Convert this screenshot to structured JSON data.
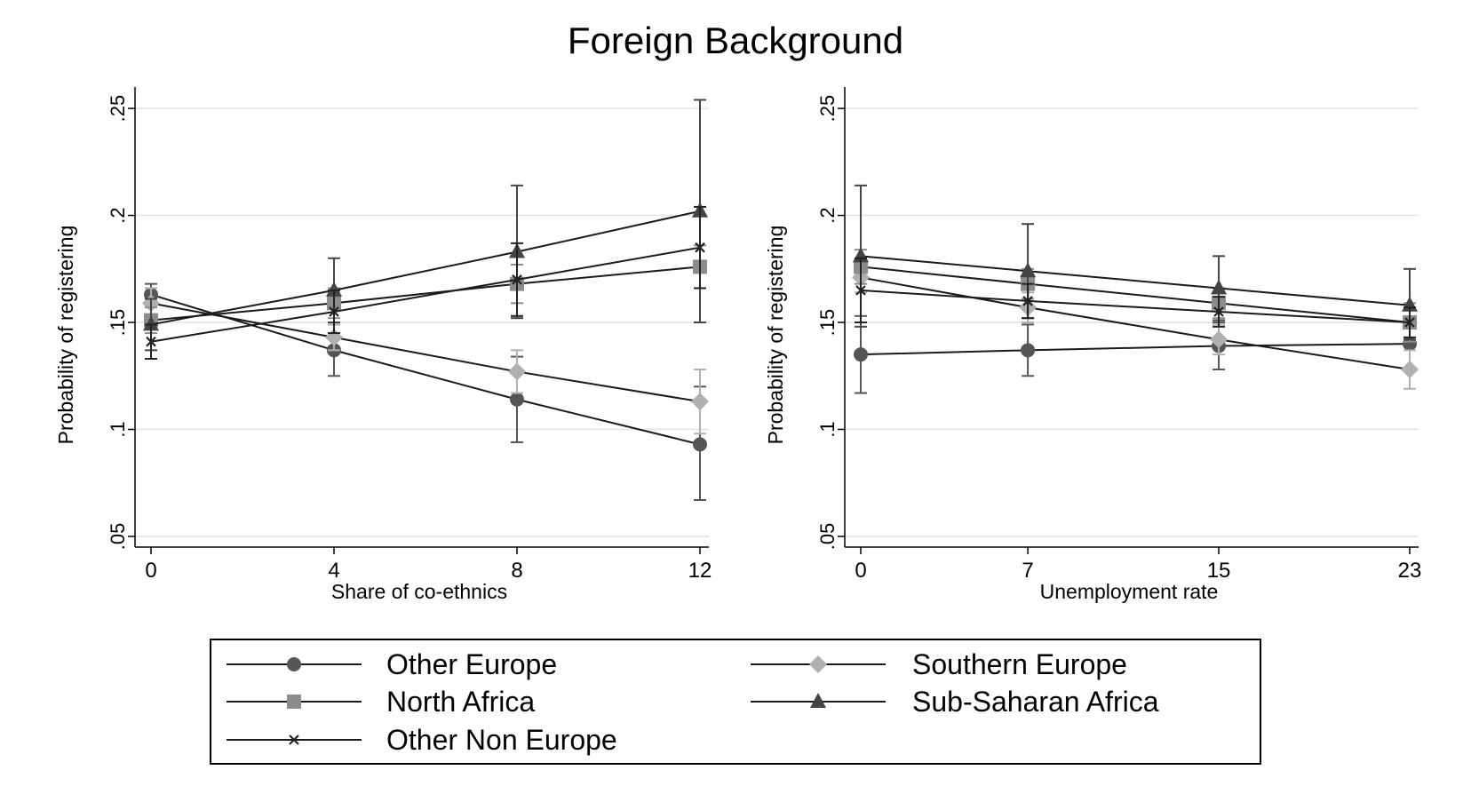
{
  "title": "Foreign Background",
  "legend": {
    "entries": [
      {
        "label": "Other Europe",
        "marker": "circle",
        "color": "#555555"
      },
      {
        "label": "Southern Europe",
        "marker": "diamond",
        "color": "#b0b0b0"
      },
      {
        "label": "North Africa",
        "marker": "square",
        "color": "#8c8c8c"
      },
      {
        "label": "Sub-Saharan Africa",
        "marker": "triangle",
        "color": "#444444"
      },
      {
        "label": "Other Non Europe",
        "marker": "x",
        "color": "#222222"
      }
    ]
  },
  "chart_data": [
    {
      "type": "line",
      "xlabel": "Share of co-ethnics",
      "ylabel": "Probability of registering",
      "x": [
        0,
        4,
        8,
        12
      ],
      "xticks": [
        "0",
        "4",
        "8",
        "12"
      ],
      "yticks": [
        ".05",
        ".1",
        ".15",
        ".2",
        ".25"
      ],
      "ylim": [
        0.045,
        0.26
      ],
      "grid": true,
      "series": [
        {
          "name": "Other Europe",
          "values": [
            0.163,
            0.137,
            0.114,
            0.093
          ],
          "ci": [
            [
              0.158,
              0.168
            ],
            [
              0.125,
              0.149
            ],
            [
              0.094,
              0.134
            ],
            [
              0.067,
              0.12
            ]
          ]
        },
        {
          "name": "Southern Europe",
          "values": [
            0.159,
            0.143,
            0.127,
            0.113
          ],
          "ci": [
            [
              0.152,
              0.166
            ],
            [
              0.137,
              0.149
            ],
            [
              0.117,
              0.137
            ],
            [
              0.098,
              0.128
            ]
          ]
        },
        {
          "name": "North Africa",
          "values": [
            0.151,
            0.159,
            0.168,
            0.176
          ],
          "ci": [
            [
              0.145,
              0.157
            ],
            [
              0.152,
              0.166
            ],
            [
              0.159,
              0.177
            ],
            [
              0.166,
              0.186
            ]
          ]
        },
        {
          "name": "Sub-Saharan Africa",
          "values": [
            0.149,
            0.165,
            0.183,
            0.202
          ],
          "ci": [
            [
              0.137,
              0.161
            ],
            [
              0.15,
              0.18
            ],
            [
              0.152,
              0.214
            ],
            [
              0.15,
              0.254
            ]
          ]
        },
        {
          "name": "Other Non Europe",
          "values": [
            0.141,
            0.155,
            0.17,
            0.185
          ],
          "ci": [
            [
              0.133,
              0.149
            ],
            [
              0.145,
              0.165
            ],
            [
              0.153,
              0.187
            ],
            [
              0.166,
              0.204
            ]
          ]
        }
      ]
    },
    {
      "type": "line",
      "xlabel": "Unemployment rate",
      "ylabel": "Probability of registering",
      "x": [
        0,
        7,
        15,
        23
      ],
      "xticks": [
        "0",
        "7",
        "15",
        "23"
      ],
      "yticks": [
        ".05",
        ".1",
        ".15",
        ".2",
        ".25"
      ],
      "ylim": [
        0.045,
        0.26
      ],
      "grid": true,
      "series": [
        {
          "name": "Other Europe",
          "values": [
            0.135,
            0.137,
            0.139,
            0.14
          ],
          "ci": [
            [
              0.117,
              0.153
            ],
            [
              0.125,
              0.149
            ],
            [
              0.128,
              0.15
            ],
            [
              0.128,
              0.152
            ]
          ]
        },
        {
          "name": "Southern Europe",
          "values": [
            0.171,
            0.157,
            0.142,
            0.128
          ],
          "ci": [
            [
              0.164,
              0.178
            ],
            [
              0.15,
              0.164
            ],
            [
              0.135,
              0.149
            ],
            [
              0.119,
              0.137
            ]
          ]
        },
        {
          "name": "North Africa",
          "values": [
            0.176,
            0.168,
            0.159,
            0.15
          ],
          "ci": [
            [
              0.168,
              0.184
            ],
            [
              0.161,
              0.175
            ],
            [
              0.152,
              0.166
            ],
            [
              0.141,
              0.159
            ]
          ]
        },
        {
          "name": "Sub-Saharan Africa",
          "values": [
            0.181,
            0.174,
            0.166,
            0.158
          ],
          "ci": [
            [
              0.148,
              0.214
            ],
            [
              0.152,
              0.196
            ],
            [
              0.151,
              0.181
            ],
            [
              0.142,
              0.175
            ]
          ]
        },
        {
          "name": "Other Non Europe",
          "values": [
            0.165,
            0.16,
            0.155,
            0.15
          ],
          "ci": [
            [
              0.15,
              0.18
            ],
            [
              0.152,
              0.168
            ],
            [
              0.148,
              0.162
            ],
            [
              0.143,
              0.157
            ]
          ]
        }
      ]
    }
  ]
}
